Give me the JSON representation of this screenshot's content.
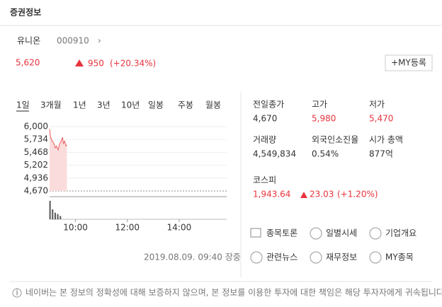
{
  "header": {
    "title": "증권정보"
  },
  "stock": {
    "name": "유니온",
    "code": "000910",
    "price": "5,620",
    "change": "950",
    "rate": "(+20.34%)",
    "my_button": "+MY등록"
  },
  "tabs": [
    "1일",
    "3개월",
    "1년",
    "3년",
    "10년",
    "일봉",
    "주봉",
    "월봉"
  ],
  "stats": [
    {
      "label": "전일종가",
      "value": "4,670"
    },
    {
      "label": "고가",
      "value": "5,980"
    },
    {
      "label": "저가",
      "value": "5,470"
    },
    {
      "label": "거래량",
      "value": "4,549,834"
    },
    {
      "label": "외국인소진율",
      "value": "0.54%"
    },
    {
      "label": "시가 총액",
      "value": "877억"
    }
  ],
  "kospi": {
    "label": "코스피",
    "value": "1,943.64",
    "change": "23.03",
    "rate": "(+1.20%)"
  },
  "timestamp": "2019.08.09. 09:40 장중",
  "links": [
    "종목토론",
    "일별시세",
    "기업개요",
    "관련뉴스",
    "재무정보",
    "MY종목"
  ],
  "footer": "네이버는 본 정보의 정확성에 대해 보증하지 않으며, 본 정보를 이용한 투자에 대한 책임은 해당 투자자에게 귀속됩니다.",
  "chart_data": [
    {
      "type": "line",
      "color": "#e85c5c",
      "x": [
        540,
        542,
        545,
        550,
        553,
        556,
        560,
        563,
        567,
        570,
        572,
        575,
        578,
        580
      ],
      "values": [
        5950,
        5800,
        5720,
        5650,
        5560,
        5600,
        5520,
        5640,
        5700,
        5780,
        5650,
        5700,
        5600,
        5620
      ],
      "xlim": [
        540,
        950
      ],
      "xticks": [
        {
          "value": 600,
          "label": "10:00"
        },
        {
          "value": 720,
          "label": "12:00"
        },
        {
          "value": 840,
          "label": "14:00"
        }
      ],
      "ylim": [
        4670,
        6000
      ],
      "yticks": [
        {
          "value": 6000,
          "label": "6,000"
        },
        {
          "value": 5734,
          "label": "5,734"
        },
        {
          "value": 5468,
          "label": "5,468"
        },
        {
          "value": 5202,
          "label": "5,202"
        },
        {
          "value": 4936,
          "label": "4,936"
        },
        {
          "value": 4670,
          "label": "4,670"
        }
      ],
      "grid": true
    },
    {
      "type": "bar",
      "color": "#555555",
      "x": [
        541,
        547,
        553,
        559,
        565
      ],
      "values": [
        28,
        15,
        10,
        8,
        5
      ],
      "xlim": [
        540,
        950
      ],
      "ylim": [
        0,
        30
      ]
    }
  ]
}
